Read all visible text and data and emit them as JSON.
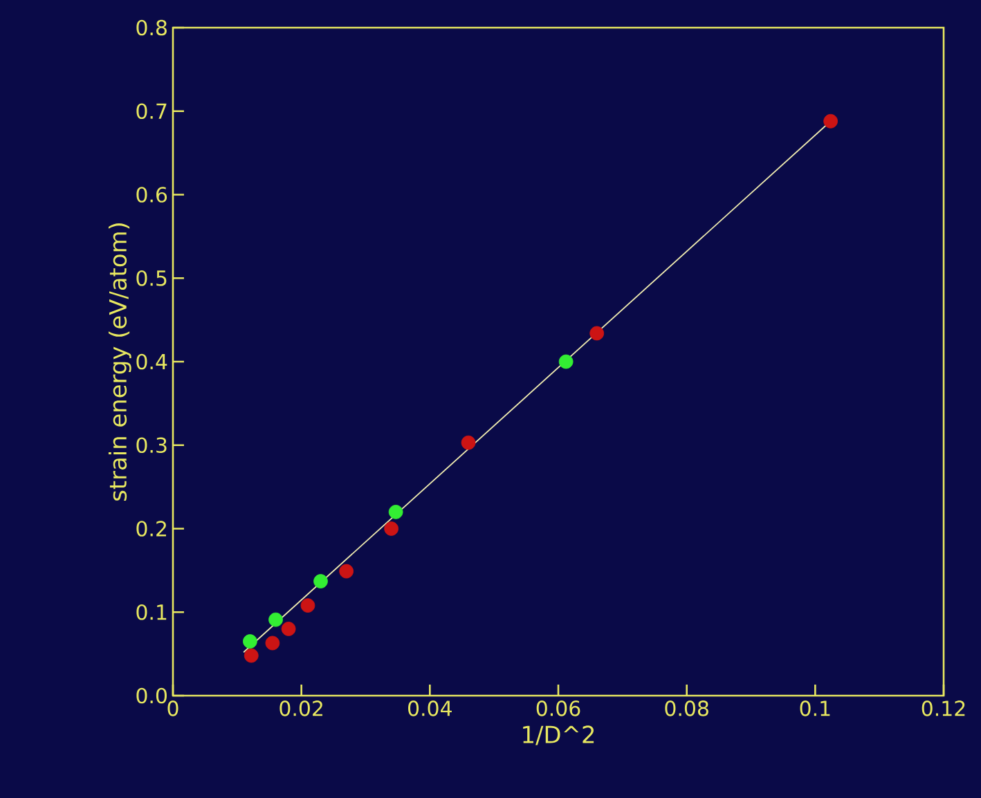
{
  "chart_data": {
    "type": "scatter",
    "xlabel": "1/D^2",
    "ylabel": "strain energy (eV/atom)",
    "xlim": [
      0,
      0.12
    ],
    "ylim": [
      0,
      0.8
    ],
    "xticks": [
      0,
      0.02,
      0.04,
      0.06,
      0.08,
      {
        "value": 0.1,
        "label": "0.1"
      },
      0.12
    ],
    "yticks": [
      {
        "value": 0,
        "label": "0.0"
      },
      0.1,
      0.2,
      0.3,
      0.4,
      0.5,
      0.6,
      0.7,
      0.8
    ],
    "grid": false,
    "legend": false,
    "series": [
      {
        "color": "#cc1414",
        "marker": "circle",
        "x": [
          0.0122,
          0.0155,
          0.018,
          0.021,
          0.027,
          0.034,
          0.046,
          0.066,
          0.1024
        ],
        "values": [
          0.048,
          0.063,
          0.08,
          0.108,
          0.149,
          0.2,
          0.303,
          0.434,
          0.688
        ]
      },
      {
        "color": "#33ee33",
        "marker": "circle",
        "x": [
          0.012,
          0.016,
          0.023,
          0.0347,
          0.0612
        ],
        "values": [
          0.065,
          0.091,
          0.137,
          0.22,
          0.4
        ]
      },
      {
        "type": "line",
        "color": "#f0ecb0",
        "marker": "none",
        "x": [
          0.011,
          0.1024
        ],
        "values": [
          0.052,
          0.688
        ]
      }
    ]
  }
}
